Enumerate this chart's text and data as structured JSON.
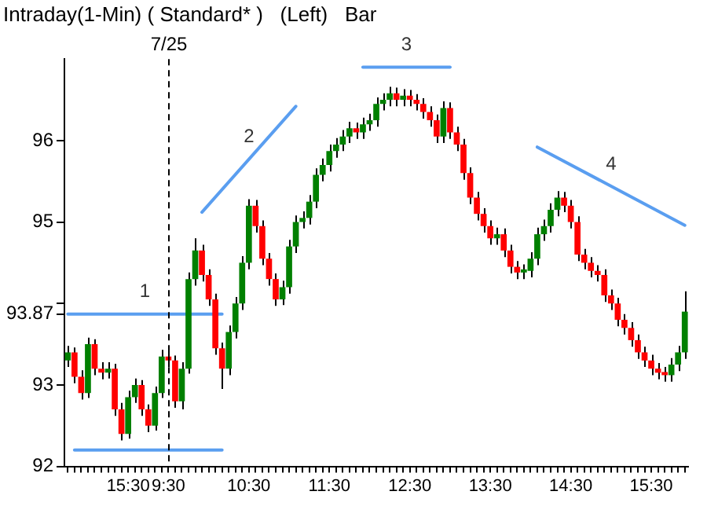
{
  "chart_data": {
    "type": "candlestick",
    "title": "Intraday(1-Min) ( Standard* )   (Left)   Bar",
    "categories": [
      null,
      null,
      null,
      null,
      null,
      null,
      null,
      null,
      null,
      "15:30",
      null,
      null,
      null,
      null,
      null,
      "9:30",
      null,
      null,
      null,
      null,
      null,
      null,
      null,
      null,
      null,
      null,
      null,
      "10:30",
      null,
      null,
      null,
      null,
      null,
      null,
      null,
      null,
      null,
      null,
      null,
      "11:30",
      null,
      null,
      null,
      null,
      null,
      null,
      null,
      null,
      null,
      null,
      null,
      "12:30",
      null,
      null,
      null,
      null,
      null,
      null,
      null,
      null,
      null,
      null,
      null,
      "13:30",
      null,
      null,
      null,
      null,
      null,
      null,
      null,
      null,
      null,
      null,
      null,
      "14:30",
      null,
      null,
      null,
      null,
      null,
      null,
      null,
      null,
      null,
      null,
      null,
      "15:30",
      null,
      null,
      null,
      null,
      null
    ],
    "ohlc": [
      [
        93.3,
        93.48,
        93.22,
        93.4
      ],
      [
        93.4,
        93.46,
        93.02,
        93.1
      ],
      [
        93.1,
        93.18,
        92.82,
        92.9
      ],
      [
        92.9,
        93.58,
        92.84,
        93.5
      ],
      [
        93.5,
        93.56,
        93.12,
        93.2
      ],
      [
        93.2,
        93.28,
        93.07,
        93.15
      ],
      [
        93.15,
        93.28,
        93.08,
        93.2
      ],
      [
        93.2,
        93.26,
        92.62,
        92.7
      ],
      [
        92.7,
        92.78,
        92.32,
        92.4
      ],
      [
        92.4,
        92.93,
        92.34,
        92.85
      ],
      [
        92.85,
        93.08,
        92.78,
        93.0
      ],
      [
        93.0,
        93.06,
        92.62,
        92.7
      ],
      [
        92.7,
        92.76,
        92.42,
        92.5
      ],
      [
        92.5,
        92.98,
        92.44,
        92.9
      ],
      [
        92.9,
        93.43,
        92.84,
        93.35
      ],
      [
        93.35,
        93.42,
        93.22,
        93.3
      ],
      [
        93.3,
        93.36,
        92.72,
        92.8
      ],
      [
        92.8,
        93.28,
        92.7,
        93.2
      ],
      [
        93.2,
        94.38,
        93.14,
        94.3
      ],
      [
        94.3,
        94.8,
        94.22,
        94.65
      ],
      [
        94.65,
        94.72,
        94.27,
        94.35
      ],
      [
        94.35,
        94.42,
        93.97,
        94.05
      ],
      [
        94.05,
        94.12,
        93.37,
        93.45
      ],
      [
        93.45,
        93.52,
        92.95,
        93.2
      ],
      [
        93.2,
        93.73,
        93.12,
        93.65
      ],
      [
        93.65,
        94.08,
        93.57,
        94.0
      ],
      [
        94.0,
        94.58,
        93.92,
        94.5
      ],
      [
        94.5,
        95.28,
        94.42,
        95.2
      ],
      [
        95.2,
        95.27,
        94.87,
        94.95
      ],
      [
        94.95,
        95.02,
        94.47,
        94.55
      ],
      [
        94.55,
        94.62,
        94.22,
        94.3
      ],
      [
        94.3,
        94.37,
        93.97,
        94.05
      ],
      [
        94.05,
        94.28,
        93.98,
        94.2
      ],
      [
        94.2,
        94.78,
        94.12,
        94.7
      ],
      [
        94.7,
        95.08,
        94.62,
        95.0
      ],
      [
        95.0,
        95.13,
        94.92,
        95.05
      ],
      [
        95.05,
        95.33,
        94.97,
        95.25
      ],
      [
        95.25,
        95.66,
        95.17,
        95.58
      ],
      [
        95.58,
        95.78,
        95.5,
        95.7
      ],
      [
        95.7,
        95.95,
        95.62,
        95.87
      ],
      [
        95.87,
        96.03,
        95.79,
        95.95
      ],
      [
        95.95,
        96.13,
        95.87,
        96.05
      ],
      [
        96.05,
        96.23,
        95.97,
        96.15
      ],
      [
        96.15,
        96.22,
        96.02,
        96.1
      ],
      [
        96.1,
        96.28,
        96.02,
        96.2
      ],
      [
        96.2,
        96.33,
        96.12,
        96.25
      ],
      [
        96.25,
        96.53,
        96.17,
        96.45
      ],
      [
        96.45,
        96.58,
        96.37,
        96.5
      ],
      [
        96.5,
        96.66,
        96.42,
        96.58
      ],
      [
        96.58,
        96.65,
        96.42,
        96.5
      ],
      [
        96.5,
        96.63,
        96.42,
        96.55
      ],
      [
        96.55,
        96.62,
        96.42,
        96.5
      ],
      [
        96.5,
        96.57,
        96.37,
        96.45
      ],
      [
        96.45,
        96.52,
        96.27,
        96.35
      ],
      [
        96.35,
        96.42,
        96.17,
        96.25
      ],
      [
        96.25,
        96.32,
        95.97,
        96.05
      ],
      [
        96.05,
        96.48,
        95.97,
        96.4
      ],
      [
        96.4,
        96.47,
        96.02,
        96.1
      ],
      [
        96.1,
        96.17,
        95.87,
        95.95
      ],
      [
        95.95,
        96.02,
        95.52,
        95.6
      ],
      [
        95.6,
        95.67,
        95.22,
        95.3
      ],
      [
        95.3,
        95.37,
        95.02,
        95.1
      ],
      [
        95.1,
        95.17,
        94.87,
        94.95
      ],
      [
        94.95,
        95.02,
        94.72,
        94.8
      ],
      [
        94.8,
        94.93,
        94.72,
        94.85
      ],
      [
        94.85,
        94.92,
        94.57,
        94.65
      ],
      [
        94.65,
        94.72,
        94.37,
        94.45
      ],
      [
        94.45,
        94.52,
        94.3,
        94.38
      ],
      [
        94.38,
        94.48,
        94.3,
        94.4
      ],
      [
        94.4,
        94.63,
        94.32,
        94.55
      ],
      [
        94.55,
        94.93,
        94.47,
        94.85
      ],
      [
        94.85,
        95.03,
        94.77,
        94.95
      ],
      [
        94.95,
        95.23,
        94.87,
        95.15
      ],
      [
        95.15,
        95.38,
        95.07,
        95.3
      ],
      [
        95.3,
        95.37,
        95.12,
        95.2
      ],
      [
        95.2,
        95.27,
        94.92,
        95.0
      ],
      [
        95.0,
        95.07,
        94.52,
        94.6
      ],
      [
        94.6,
        94.67,
        94.42,
        94.5
      ],
      [
        94.5,
        94.57,
        94.32,
        94.4
      ],
      [
        94.4,
        94.47,
        94.27,
        94.35
      ],
      [
        94.35,
        94.42,
        94.02,
        94.1
      ],
      [
        94.1,
        94.17,
        93.92,
        94.0
      ],
      [
        94.0,
        94.07,
        93.72,
        93.8
      ],
      [
        93.8,
        93.87,
        93.62,
        93.7
      ],
      [
        93.7,
        93.77,
        93.47,
        93.55
      ],
      [
        93.55,
        93.62,
        93.32,
        93.4
      ],
      [
        93.4,
        93.47,
        93.22,
        93.3
      ],
      [
        93.3,
        93.37,
        93.12,
        93.2
      ],
      [
        93.2,
        93.27,
        93.07,
        93.15
      ],
      [
        93.15,
        93.22,
        93.04,
        93.12
      ],
      [
        93.12,
        93.33,
        93.04,
        93.25
      ],
      [
        93.25,
        93.48,
        93.17,
        93.4
      ],
      [
        93.4,
        94.15,
        93.32,
        93.9
      ]
    ],
    "ylim": [
      92,
      97
    ],
    "yticks": [
      92,
      93,
      {
        "value": 93.87,
        "label": "93.87"
      },
      {
        "value": 94,
        "label": null
      },
      95,
      96
    ],
    "ref_lines": [
      {
        "axis": "x",
        "value": "9:30",
        "label": "7/25",
        "line_style": "dashed",
        "color": "#000000"
      }
    ],
    "series": [
      {
        "type": "line",
        "name": "1",
        "color": "#5a9ef0",
        "values": [
          93.87,
          null,
          null,
          null,
          null,
          null,
          null,
          null,
          null,
          null,
          null,
          null,
          null,
          null,
          null,
          null,
          null,
          null,
          null,
          null,
          null,
          null,
          null,
          93.87,
          null,
          null,
          null,
          null,
          null,
          null,
          null,
          null,
          null,
          null,
          null,
          null,
          null,
          null,
          null,
          null,
          null,
          null,
          null,
          null,
          null,
          null,
          null,
          null,
          null,
          null,
          null,
          null,
          null,
          null,
          null,
          null,
          null,
          null,
          null,
          null,
          null,
          null,
          null,
          null,
          null,
          null,
          null,
          null,
          null,
          null,
          null,
          null,
          null,
          null,
          null,
          null,
          null,
          null,
          null,
          null,
          null,
          null,
          null,
          null,
          null,
          null,
          null,
          null,
          null,
          null,
          null,
          null,
          null
        ]
      },
      {
        "type": "line",
        "color": "#5a9ef0",
        "values": [
          null,
          92.2,
          null,
          null,
          null,
          null,
          null,
          null,
          null,
          null,
          null,
          null,
          null,
          null,
          null,
          null,
          null,
          null,
          null,
          null,
          null,
          null,
          null,
          92.2,
          null,
          null,
          null,
          null,
          null,
          null,
          null,
          null,
          null,
          null,
          null,
          null,
          null,
          null,
          null,
          null,
          null,
          null,
          null,
          null,
          null,
          null,
          null,
          null,
          null,
          null,
          null,
          null,
          null,
          null,
          null,
          null,
          null,
          null,
          null,
          null,
          null,
          null,
          null,
          null,
          null,
          null,
          null,
          null,
          null,
          null,
          null,
          null,
          null,
          null,
          null,
          null,
          null,
          null,
          null,
          null,
          null,
          null,
          null,
          null,
          null,
          null,
          null,
          null,
          null,
          null,
          null,
          null,
          null
        ]
      },
      {
        "type": "line",
        "name": "2",
        "color": "#5a9ef0",
        "values": [
          null,
          null,
          null,
          null,
          null,
          null,
          null,
          null,
          null,
          null,
          null,
          null,
          null,
          null,
          null,
          null,
          null,
          null,
          null,
          null,
          95.12,
          null,
          null,
          null,
          null,
          null,
          null,
          null,
          null,
          null,
          null,
          null,
          null,
          null,
          96.42,
          null,
          null,
          null,
          null,
          null,
          null,
          null,
          null,
          null,
          null,
          null,
          null,
          null,
          null,
          null,
          null,
          null,
          null,
          null,
          null,
          null,
          null,
          null,
          null,
          null,
          null,
          null,
          null,
          null,
          null,
          null,
          null,
          null,
          null,
          null,
          null,
          null,
          null,
          null,
          null,
          null,
          null,
          null,
          null,
          null,
          null,
          null,
          null,
          null,
          null,
          null,
          null,
          null,
          null,
          null,
          null,
          null,
          null
        ]
      },
      {
        "type": "line",
        "name": "3",
        "color": "#5a9ef0",
        "values": [
          null,
          null,
          null,
          null,
          null,
          null,
          null,
          null,
          null,
          null,
          null,
          null,
          null,
          null,
          null,
          null,
          null,
          null,
          null,
          null,
          null,
          null,
          null,
          null,
          null,
          null,
          null,
          null,
          null,
          null,
          null,
          null,
          null,
          null,
          null,
          null,
          null,
          null,
          null,
          null,
          null,
          null,
          null,
          null,
          96.9,
          null,
          null,
          null,
          null,
          null,
          null,
          null,
          null,
          null,
          null,
          null,
          null,
          96.9,
          null,
          null,
          null,
          null,
          null,
          null,
          null,
          null,
          null,
          null,
          null,
          null,
          null,
          null,
          null,
          null,
          null,
          null,
          null,
          null,
          null,
          null,
          null,
          null,
          null,
          null,
          null,
          null,
          null,
          null,
          null,
          null,
          null,
          null,
          null
        ]
      },
      {
        "type": "line",
        "name": "4",
        "color": "#5a9ef0",
        "values": [
          null,
          null,
          null,
          null,
          null,
          null,
          null,
          null,
          null,
          null,
          null,
          null,
          null,
          null,
          null,
          null,
          null,
          null,
          null,
          null,
          null,
          null,
          null,
          null,
          null,
          null,
          null,
          null,
          null,
          null,
          null,
          null,
          null,
          null,
          null,
          null,
          null,
          null,
          null,
          null,
          null,
          null,
          null,
          null,
          null,
          null,
          null,
          null,
          null,
          null,
          null,
          null,
          null,
          null,
          null,
          null,
          null,
          null,
          null,
          null,
          null,
          null,
          null,
          null,
          null,
          null,
          null,
          null,
          null,
          null,
          95.92,
          null,
          null,
          null,
          null,
          null,
          null,
          null,
          null,
          null,
          null,
          null,
          null,
          null,
          null,
          null,
          null,
          null,
          null,
          null,
          null,
          null,
          94.96
        ]
      }
    ]
  }
}
